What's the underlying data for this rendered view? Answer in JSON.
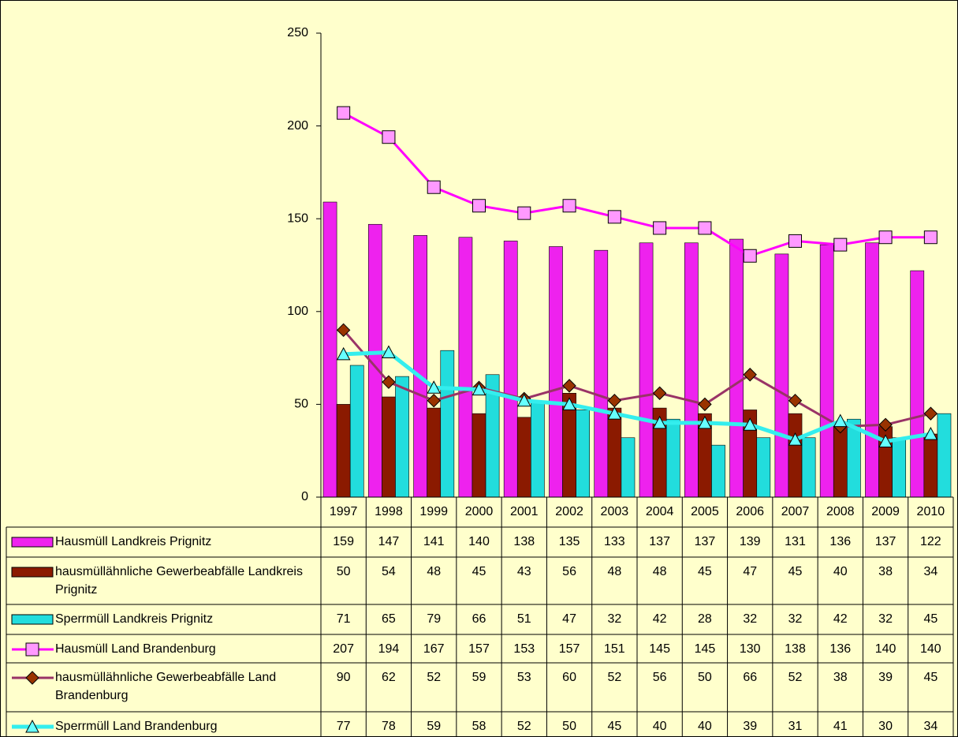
{
  "chart_data": {
    "type": "combo",
    "categories": [
      "1997",
      "1998",
      "1999",
      "2000",
      "2001",
      "2002",
      "2003",
      "2004",
      "2005",
      "2006",
      "2007",
      "2008",
      "2009",
      "2010"
    ],
    "ylim": [
      0,
      250
    ],
    "yticks": [
      0,
      50,
      100,
      150,
      200,
      250
    ],
    "grid": false,
    "data_table": true,
    "series": [
      {
        "name": "Hausmüll Landkreis Prignitz",
        "type": "bar",
        "color": "#ee22ee",
        "values": [
          159,
          147,
          141,
          140,
          138,
          135,
          133,
          137,
          137,
          139,
          131,
          136,
          137,
          122
        ]
      },
      {
        "name": "hausmüllähnliche Gewerbeabfälle Landkreis Prignitz",
        "type": "bar",
        "color": "#8b1a00",
        "values": [
          50,
          54,
          48,
          45,
          43,
          56,
          48,
          48,
          45,
          47,
          45,
          40,
          38,
          34
        ]
      },
      {
        "name": "Sperrmüll Landkreis Prignitz",
        "type": "bar",
        "color": "#22dddd",
        "values": [
          71,
          65,
          79,
          66,
          51,
          47,
          32,
          42,
          28,
          32,
          32,
          42,
          32,
          45
        ]
      },
      {
        "name": "Hausmüll Land Brandenburg",
        "type": "line",
        "marker": "square",
        "color": "#ff00ff",
        "marker_color": "#ff99ff",
        "values": [
          207,
          194,
          167,
          157,
          153,
          157,
          151,
          145,
          145,
          130,
          138,
          136,
          140,
          140
        ]
      },
      {
        "name": "hausmüllähnliche Gewerbeabfälle Land Brandenburg",
        "type": "line",
        "marker": "diamond",
        "color": "#993366",
        "marker_color": "#993300",
        "values": [
          90,
          62,
          52,
          59,
          53,
          60,
          52,
          56,
          50,
          66,
          52,
          38,
          39,
          45
        ]
      },
      {
        "name": "Sperrmüll Land Brandenburg",
        "type": "line",
        "marker": "triangle",
        "color": "#33eeee",
        "marker_color": "#66ffff",
        "values": [
          77,
          78,
          59,
          58,
          52,
          50,
          45,
          40,
          40,
          39,
          31,
          41,
          30,
          34
        ]
      }
    ]
  }
}
